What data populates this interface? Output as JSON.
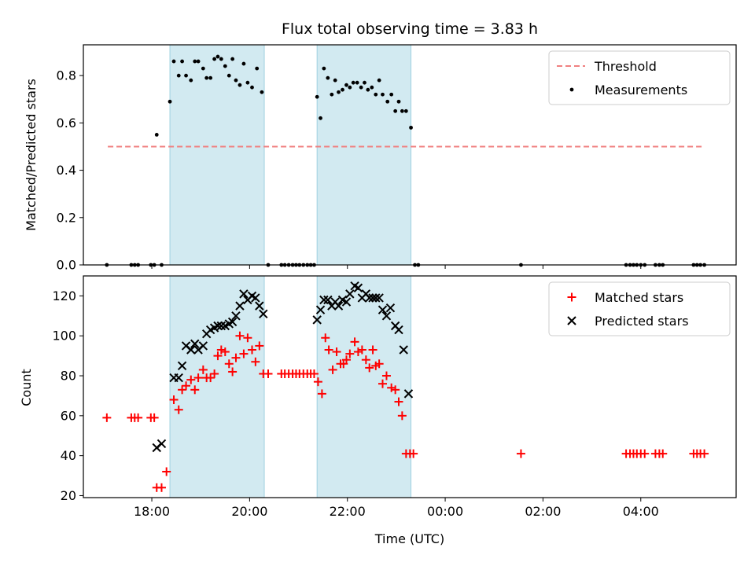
{
  "chart_data": {
    "title": "Flux total observing time = 3.83 h",
    "xlabel": "Time (UTC)",
    "x_unit": "hours since 00:00 UTC of first day",
    "x_ticks": [
      {
        "x": 18,
        "label": "18:00"
      },
      {
        "x": 20,
        "label": "20:00"
      },
      {
        "x": 22,
        "label": "22:00"
      },
      {
        "x": 24,
        "label": "00:00"
      },
      {
        "x": 26,
        "label": "02:00"
      },
      {
        "x": 28,
        "label": "04:00"
      }
    ],
    "xlim": [
      16.6,
      29.95
    ],
    "shaded_intervals": [
      [
        18.37,
        20.3
      ],
      [
        21.38,
        23.3
      ]
    ],
    "shade_color": "#add8e6",
    "panels": [
      {
        "type": "scatter",
        "ylabel": "Matched/Predicted stars",
        "ylim": [
          0.0,
          0.93
        ],
        "y_ticks": [
          {
            "y": 0.0,
            "label": "0.0"
          },
          {
            "y": 0.2,
            "label": "0.2"
          },
          {
            "y": 0.4,
            "label": "0.4"
          },
          {
            "y": 0.6,
            "label": "0.6"
          },
          {
            "y": 0.8,
            "label": "0.8"
          }
        ],
        "legend_position": "upper-right",
        "threshold": {
          "name": "Threshold",
          "y": 0.5,
          "x_range": [
            17.1,
            29.3
          ],
          "color": "#f08080",
          "style": "dashed"
        },
        "series": [
          {
            "name": "Measurements",
            "marker": "dot",
            "color": "#000000",
            "points": [
              [
                17.08,
                0
              ],
              [
                17.58,
                0
              ],
              [
                17.65,
                0
              ],
              [
                17.72,
                0
              ],
              [
                17.98,
                0
              ],
              [
                18.05,
                0
              ],
              [
                18.1,
                0.55
              ],
              [
                18.2,
                0
              ],
              [
                18.37,
                0.69
              ],
              [
                18.45,
                0.86
              ],
              [
                18.55,
                0.8
              ],
              [
                18.62,
                0.86
              ],
              [
                18.7,
                0.8
              ],
              [
                18.8,
                0.78
              ],
              [
                18.88,
                0.86
              ],
              [
                18.95,
                0.86
              ],
              [
                19.05,
                0.83
              ],
              [
                19.12,
                0.79
              ],
              [
                19.2,
                0.79
              ],
              [
                19.28,
                0.87
              ],
              [
                19.35,
                0.88
              ],
              [
                19.42,
                0.87
              ],
              [
                19.5,
                0.84
              ],
              [
                19.58,
                0.8
              ],
              [
                19.65,
                0.87
              ],
              [
                19.72,
                0.78
              ],
              [
                19.8,
                0.76
              ],
              [
                19.88,
                0.85
              ],
              [
                19.96,
                0.77
              ],
              [
                20.05,
                0.75
              ],
              [
                20.15,
                0.83
              ],
              [
                20.25,
                0.73
              ],
              [
                20.38,
                0
              ],
              [
                20.65,
                0
              ],
              [
                20.72,
                0
              ],
              [
                20.8,
                0
              ],
              [
                20.88,
                0
              ],
              [
                20.95,
                0
              ],
              [
                21.02,
                0
              ],
              [
                21.1,
                0
              ],
              [
                21.18,
                0
              ],
              [
                21.25,
                0
              ],
              [
                21.32,
                0
              ],
              [
                21.38,
                0.71
              ],
              [
                21.45,
                0.62
              ],
              [
                21.52,
                0.83
              ],
              [
                21.6,
                0.79
              ],
              [
                21.68,
                0.72
              ],
              [
                21.75,
                0.78
              ],
              [
                21.82,
                0.73
              ],
              [
                21.9,
                0.74
              ],
              [
                21.98,
                0.76
              ],
              [
                22.05,
                0.75
              ],
              [
                22.12,
                0.77
              ],
              [
                22.2,
                0.77
              ],
              [
                22.28,
                0.75
              ],
              [
                22.35,
                0.77
              ],
              [
                22.42,
                0.74
              ],
              [
                22.5,
                0.75
              ],
              [
                22.58,
                0.72
              ],
              [
                22.65,
                0.78
              ],
              [
                22.72,
                0.72
              ],
              [
                22.82,
                0.69
              ],
              [
                22.9,
                0.72
              ],
              [
                22.98,
                0.65
              ],
              [
                23.05,
                0.69
              ],
              [
                23.12,
                0.65
              ],
              [
                23.2,
                0.65
              ],
              [
                23.3,
                0.58
              ],
              [
                23.38,
                0
              ],
              [
                23.45,
                0
              ],
              [
                25.55,
                0
              ],
              [
                27.7,
                0
              ],
              [
                27.78,
                0
              ],
              [
                27.85,
                0
              ],
              [
                27.92,
                0
              ],
              [
                28.0,
                0
              ],
              [
                28.08,
                0
              ],
              [
                28.3,
                0
              ],
              [
                28.38,
                0
              ],
              [
                28.45,
                0
              ],
              [
                29.08,
                0
              ],
              [
                29.15,
                0
              ],
              [
                29.22,
                0
              ],
              [
                29.3,
                0
              ]
            ]
          }
        ]
      },
      {
        "type": "scatter",
        "ylabel": "Count",
        "ylim": [
          19,
          130
        ],
        "y_ticks": [
          {
            "y": 20,
            "label": "20"
          },
          {
            "y": 40,
            "label": "40"
          },
          {
            "y": 60,
            "label": "60"
          },
          {
            "y": 80,
            "label": "80"
          },
          {
            "y": 100,
            "label": "100"
          },
          {
            "y": 120,
            "label": "120"
          }
        ],
        "legend_position": "upper-right",
        "series": [
          {
            "name": "Matched stars",
            "marker": "plus",
            "color": "#ff0000",
            "points": [
              [
                17.08,
                59
              ],
              [
                17.58,
                59
              ],
              [
                17.65,
                59
              ],
              [
                17.72,
                59
              ],
              [
                17.98,
                59
              ],
              [
                18.05,
                59
              ],
              [
                18.1,
                24
              ],
              [
                18.2,
                24
              ],
              [
                18.3,
                32
              ],
              [
                18.45,
                68
              ],
              [
                18.55,
                63
              ],
              [
                18.62,
                73
              ],
              [
                18.7,
                75
              ],
              [
                18.8,
                78
              ],
              [
                18.88,
                73
              ],
              [
                18.95,
                79
              ],
              [
                19.05,
                83
              ],
              [
                19.12,
                79
              ],
              [
                19.2,
                79
              ],
              [
                19.28,
                81
              ],
              [
                19.35,
                90
              ],
              [
                19.42,
                93
              ],
              [
                19.5,
                92
              ],
              [
                19.58,
                86
              ],
              [
                19.65,
                82
              ],
              [
                19.72,
                89
              ],
              [
                19.8,
                100
              ],
              [
                19.88,
                91
              ],
              [
                19.96,
                99
              ],
              [
                20.05,
                93
              ],
              [
                20.12,
                87
              ],
              [
                20.2,
                95
              ],
              [
                20.28,
                81
              ],
              [
                20.38,
                81
              ],
              [
                20.65,
                81
              ],
              [
                20.72,
                81
              ],
              [
                20.8,
                81
              ],
              [
                20.88,
                81
              ],
              [
                20.95,
                81
              ],
              [
                21.02,
                81
              ],
              [
                21.1,
                81
              ],
              [
                21.18,
                81
              ],
              [
                21.25,
                81
              ],
              [
                21.32,
                81
              ],
              [
                21.4,
                77
              ],
              [
                21.48,
                71
              ],
              [
                21.55,
                99
              ],
              [
                21.62,
                93
              ],
              [
                21.7,
                83
              ],
              [
                21.78,
                92
              ],
              [
                21.86,
                86
              ],
              [
                21.92,
                86
              ],
              [
                21.98,
                88
              ],
              [
                22.05,
                91
              ],
              [
                22.15,
                97
              ],
              [
                22.22,
                92
              ],
              [
                22.3,
                93
              ],
              [
                22.38,
                88
              ],
              [
                22.45,
                84
              ],
              [
                22.52,
                93
              ],
              [
                22.58,
                85
              ],
              [
                22.65,
                86
              ],
              [
                22.72,
                76
              ],
              [
                22.8,
                80
              ],
              [
                22.9,
                74
              ],
              [
                22.98,
                73
              ],
              [
                23.05,
                67
              ],
              [
                23.12,
                60
              ],
              [
                23.2,
                41
              ],
              [
                23.28,
                41
              ],
              [
                23.35,
                41
              ],
              [
                25.55,
                41
              ],
              [
                27.7,
                41
              ],
              [
                27.78,
                41
              ],
              [
                27.85,
                41
              ],
              [
                27.92,
                41
              ],
              [
                28.0,
                41
              ],
              [
                28.08,
                41
              ],
              [
                28.3,
                41
              ],
              [
                28.38,
                41
              ],
              [
                28.45,
                41
              ],
              [
                29.08,
                41
              ],
              [
                29.15,
                41
              ],
              [
                29.22,
                41
              ],
              [
                29.3,
                41
              ]
            ]
          },
          {
            "name": "Predicted stars",
            "marker": "cross",
            "color": "#000000",
            "points": [
              [
                18.1,
                44
              ],
              [
                18.2,
                46
              ],
              [
                18.45,
                79
              ],
              [
                18.55,
                79
              ],
              [
                18.62,
                85
              ],
              [
                18.7,
                95
              ],
              [
                18.8,
                93
              ],
              [
                18.88,
                96
              ],
              [
                18.95,
                93
              ],
              [
                19.05,
                95
              ],
              [
                19.12,
                101
              ],
              [
                19.2,
                103
              ],
              [
                19.28,
                104
              ],
              [
                19.35,
                105
              ],
              [
                19.42,
                105
              ],
              [
                19.5,
                105
              ],
              [
                19.58,
                106
              ],
              [
                19.65,
                107
              ],
              [
                19.72,
                110
              ],
              [
                19.8,
                115
              ],
              [
                19.88,
                121
              ],
              [
                19.96,
                118
              ],
              [
                20.05,
                120
              ],
              [
                20.12,
                119
              ],
              [
                20.2,
                115
              ],
              [
                20.28,
                111
              ],
              [
                21.38,
                108
              ],
              [
                21.45,
                113
              ],
              [
                21.52,
                118
              ],
              [
                21.6,
                118
              ],
              [
                21.68,
                115
              ],
              [
                21.75,
                117
              ],
              [
                21.82,
                115
              ],
              [
                21.9,
                118
              ],
              [
                21.98,
                117
              ],
              [
                22.05,
                121
              ],
              [
                22.15,
                125
              ],
              [
                22.22,
                124
              ],
              [
                22.3,
                119
              ],
              [
                22.38,
                121
              ],
              [
                22.45,
                119
              ],
              [
                22.52,
                119
              ],
              [
                22.58,
                119
              ],
              [
                22.65,
                119
              ],
              [
                22.72,
                113
              ],
              [
                22.8,
                110
              ],
              [
                22.88,
                114
              ],
              [
                22.98,
                105
              ],
              [
                23.05,
                103
              ],
              [
                23.15,
                93
              ],
              [
                23.25,
                71
              ]
            ]
          }
        ]
      }
    ]
  }
}
